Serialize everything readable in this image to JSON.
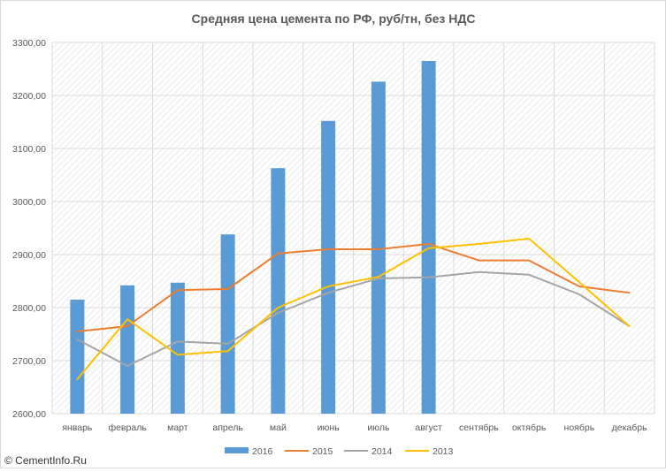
{
  "chart_data": {
    "type": "bar",
    "title": "Средняя цена цемента по РФ, руб/тн, без НДС",
    "categories": [
      "январь",
      "февраль",
      "март",
      "апрель",
      "май",
      "июнь",
      "июль",
      "август",
      "сентябрь",
      "октябрь",
      "ноябрь",
      "декабрь"
    ],
    "ylim": [
      2600,
      3300
    ],
    "yticks": [
      2600,
      2700,
      2800,
      2900,
      3000,
      3100,
      3200,
      3300
    ],
    "ytick_labels": [
      "2600,00",
      "2700,00",
      "2800,00",
      "2900,00",
      "3000,00",
      "3100,00",
      "3200,00",
      "3300,00"
    ],
    "grid": true,
    "legend_position": "bottom",
    "series": [
      {
        "name": "2016",
        "type": "bar",
        "color": "#5b9bd5",
        "values": [
          2815,
          2842,
          2847,
          2938,
          3063,
          3152,
          3226,
          3265,
          null,
          null,
          null,
          null
        ]
      },
      {
        "name": "2015",
        "type": "line",
        "color": "#ed7d31",
        "values": [
          2755,
          2765,
          2833,
          2835,
          2902,
          2910,
          2910,
          2920,
          2889,
          2889,
          2840,
          2828
        ]
      },
      {
        "name": "2014",
        "type": "line",
        "color": "#a5a5a5",
        "values": [
          2740,
          2690,
          2736,
          2732,
          2790,
          2828,
          2855,
          2857,
          2867,
          2862,
          2825,
          2765
        ]
      },
      {
        "name": "2013",
        "type": "line",
        "color": "#ffc000",
        "values": [
          2665,
          2778,
          2711,
          2718,
          2800,
          2840,
          2858,
          2912,
          2920,
          2930,
          2848,
          2765
        ]
      }
    ]
  },
  "watermark": "© CementInfo.Ru"
}
